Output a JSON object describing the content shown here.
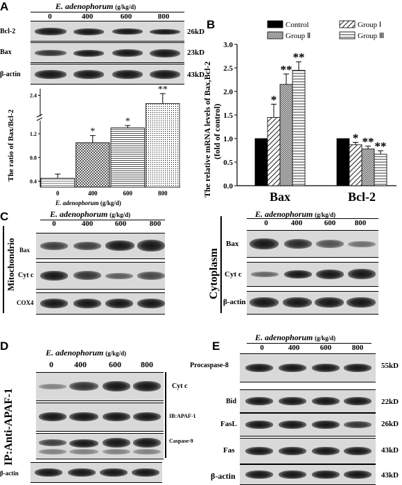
{
  "panels": {
    "A": {
      "label": "A",
      "header": "E. adenophorum",
      "unit": "(g/kg/d)",
      "lanes": [
        "0",
        "400",
        "600",
        "800"
      ],
      "rows": [
        {
          "name": "Bcl-2",
          "kd": "26kD"
        },
        {
          "name": "Bax",
          "kd": "23kD"
        },
        {
          "name": "β-actin",
          "kd": "43kD"
        }
      ],
      "ylabel": "The ratio of Bax/Bcl-2",
      "xlabel": "E. adenophorum",
      "xunit": "(g/kg/d)"
    },
    "B": {
      "label": "B",
      "ylabel_line1": "The relative mRNA levels of Bax,Bcl-2",
      "ylabel_line2": "(fold of control)",
      "legend": [
        "Control",
        "Group Ⅰ",
        "Group Ⅱ",
        "Group Ⅲ"
      ]
    },
    "C": {
      "label": "C",
      "left": {
        "header": "E. adenophorum",
        "unit": "(g/kg/d)",
        "lanes": [
          "0",
          "400",
          "600",
          "800"
        ],
        "rows": [
          "Bax",
          "Cyt c",
          "COX4"
        ],
        "side": "Mitochondrio"
      },
      "right": {
        "header": "E. adenophorum",
        "unit": "(g/kg/d)",
        "lanes": [
          "0",
          "400",
          "600",
          "800"
        ],
        "rows": [
          "Bax",
          "Cyt c",
          "β-actin"
        ],
        "side": "Cytoplasm"
      }
    },
    "D": {
      "label": "D",
      "header": "E. adenophorum",
      "unit": "(g/kg/d)",
      "lanes": [
        "0",
        "400",
        "600",
        "800"
      ],
      "rows": [
        "Cyt c",
        "IB:APAF-1",
        "Caspase-9"
      ],
      "bottom": "β-actin",
      "side": "IP:Anti-APAF-1"
    },
    "E": {
      "label": "E",
      "header": "E. adenophorum",
      "unit": "(g/kg/d)",
      "lanes": [
        "0",
        "400",
        "600",
        "800"
      ],
      "rows": [
        {
          "name": "Procaspase-8",
          "kd": "55kD"
        },
        {
          "name": "Bid",
          "kd": "22kD"
        },
        {
          "name": "FasL",
          "kd": "26kD"
        },
        {
          "name": "Fas",
          "kd": "43kD"
        },
        {
          "name": "β-actin",
          "kd": "43kD"
        }
      ]
    }
  },
  "chart_data": [
    {
      "type": "bar",
      "panel": "A",
      "categories": [
        "0",
        "400",
        "600",
        "800"
      ],
      "values": [
        0.45,
        1.05,
        1.3,
        2.15
      ],
      "errors": [
        0.07,
        0.12,
        0.18,
        0.3
      ],
      "significance": [
        "",
        "*",
        "*",
        "**"
      ],
      "ylabel": "The ratio of Bax/Bcl-2",
      "xlabel": "E. adenophorum (g/kg/d)",
      "yticks": [
        "0.4",
        "0.8",
        "1.2",
        "2.4"
      ],
      "axis_break": true
    },
    {
      "type": "bar",
      "panel": "B",
      "categories": [
        "Bax",
        "Bcl-2"
      ],
      "series": [
        {
          "name": "Control",
          "values": [
            1.0,
            1.0
          ],
          "errors": [
            0,
            0
          ],
          "sig": [
            "",
            ""
          ]
        },
        {
          "name": "Group Ⅰ",
          "values": [
            1.45,
            0.87
          ],
          "errors": [
            0.28,
            0.05
          ],
          "sig": [
            "*",
            "*"
          ]
        },
        {
          "name": "Group Ⅱ",
          "values": [
            2.15,
            0.78
          ],
          "errors": [
            0.22,
            0.06
          ],
          "sig": [
            "**",
            "**"
          ]
        },
        {
          "name": "Group Ⅲ",
          "values": [
            2.45,
            0.67
          ],
          "errors": [
            0.18,
            0.07
          ],
          "sig": [
            "**",
            "**"
          ]
        }
      ],
      "ylabel": "The relative mRNA levels of Bax,Bcl-2 (fold of control)",
      "ylim": [
        0.0,
        3.0
      ],
      "yticks": [
        "0.0",
        "0.5",
        "1.0",
        "1.5",
        "2.0",
        "2.5",
        "3.0"
      ],
      "legend_position": "top"
    }
  ]
}
